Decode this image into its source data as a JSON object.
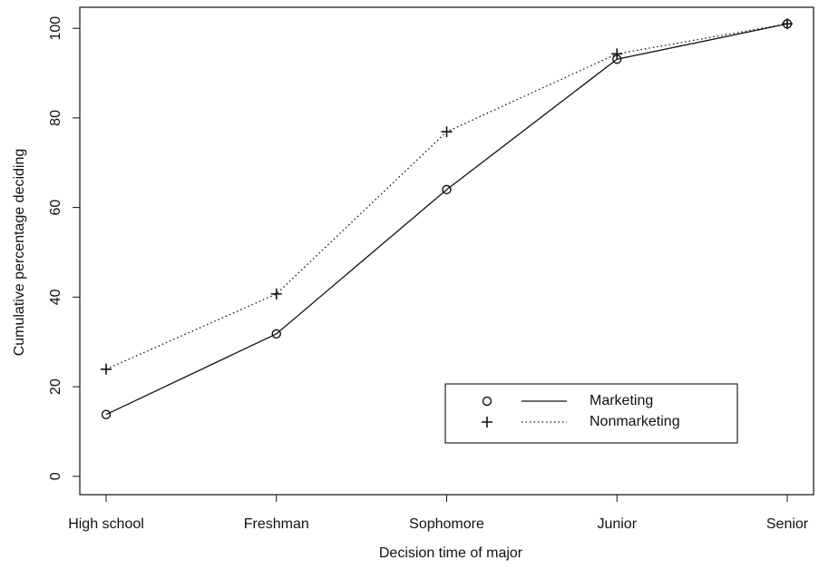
{
  "chart_data": {
    "type": "line",
    "xlabel": "Decision time of major",
    "ylabel": "Cumulative percentage deciding",
    "categories": [
      "High school",
      "Freshman",
      "Sophomore",
      "Junior",
      "Senior"
    ],
    "series": [
      {
        "name": "Marketing",
        "color": "#111111",
        "marker": "circle",
        "dash": "solid",
        "values": [
          13.8,
          31.8,
          64,
          93.1,
          101
        ]
      },
      {
        "name": "Nonmarketing",
        "color": "#111111",
        "marker": "plus",
        "dash": "dotted",
        "values": [
          23.9,
          40.7,
          76.9,
          94.3,
          101
        ]
      }
    ],
    "ylim": [
      -4.1,
      104.7
    ],
    "yticks": [
      0,
      20,
      40,
      60,
      80,
      100
    ],
    "legend": "lower-right"
  }
}
